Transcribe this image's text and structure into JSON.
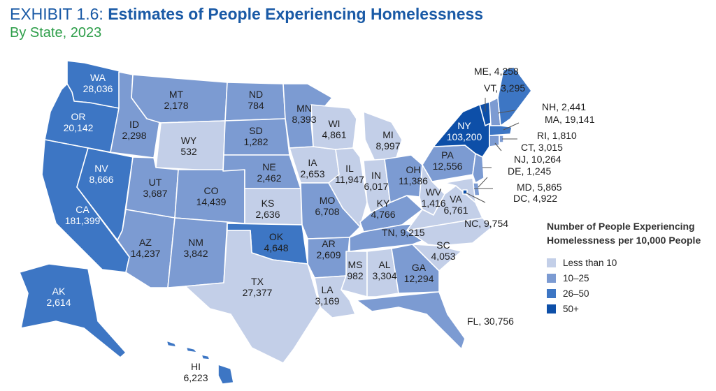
{
  "header": {
    "exhibit": "EXHIBIT 1.6:",
    "title": "Estimates of People Experiencing Homelessness",
    "subtitle": "By State, 2023"
  },
  "legend": {
    "title": "Number of People Experiencing Homelessness per 10,000 People",
    "items": [
      {
        "label": "Less than 10",
        "color": "#c3cfe8"
      },
      {
        "label": "10–25",
        "color": "#7c9bd2"
      },
      {
        "label": "26–50",
        "color": "#3d76c4"
      },
      {
        "label": "50+",
        "color": "#0d4fa8"
      }
    ]
  },
  "states": [
    {
      "abbr": "WA",
      "value": "28,036",
      "category": 2
    },
    {
      "abbr": "OR",
      "value": "20,142",
      "category": 2
    },
    {
      "abbr": "CA",
      "value": "181,399",
      "category": 2
    },
    {
      "abbr": "NV",
      "value": "8,666",
      "category": 2
    },
    {
      "abbr": "ID",
      "value": "2,298",
      "category": 1
    },
    {
      "abbr": "MT",
      "value": "2,178",
      "category": 1
    },
    {
      "abbr": "WY",
      "value": "532",
      "category": 0
    },
    {
      "abbr": "UT",
      "value": "3,687",
      "category": 1
    },
    {
      "abbr": "CO",
      "value": "14,439",
      "category": 1
    },
    {
      "abbr": "AZ",
      "value": "14,237",
      "category": 1
    },
    {
      "abbr": "NM",
      "value": "3,842",
      "category": 1
    },
    {
      "abbr": "ND",
      "value": "784",
      "category": 1
    },
    {
      "abbr": "SD",
      "value": "1,282",
      "category": 1
    },
    {
      "abbr": "NE",
      "value": "2,462",
      "category": 1
    },
    {
      "abbr": "KS",
      "value": "2,636",
      "category": 0
    },
    {
      "abbr": "OK",
      "value": "4,648",
      "category": 2
    },
    {
      "abbr": "TX",
      "value": "27,377",
      "category": 0
    },
    {
      "abbr": "MN",
      "value": "8,393",
      "category": 1
    },
    {
      "abbr": "IA",
      "value": "2,653",
      "category": 0
    },
    {
      "abbr": "MO",
      "value": "6,708",
      "category": 1
    },
    {
      "abbr": "AR",
      "value": "2,609",
      "category": 1
    },
    {
      "abbr": "LA",
      "value": "3,169",
      "category": 0
    },
    {
      "abbr": "WI",
      "value": "4,861",
      "category": 0
    },
    {
      "abbr": "IL",
      "value": "11,947",
      "category": 0
    },
    {
      "abbr": "MS",
      "value": "982",
      "category": 0
    },
    {
      "abbr": "MI",
      "value": "8,997",
      "category": 0
    },
    {
      "abbr": "IN",
      "value": "6,017",
      "category": 0
    },
    {
      "abbr": "KY",
      "value": "4,766",
      "category": 1
    },
    {
      "abbr": "TN",
      "value": "9,215",
      "category": 1
    },
    {
      "abbr": "AL",
      "value": "3,304",
      "category": 0
    },
    {
      "abbr": "GA",
      "value": "12,294",
      "category": 1
    },
    {
      "abbr": "FL",
      "value": "30,756",
      "category": 1
    },
    {
      "abbr": "OH",
      "value": "11,386",
      "category": 1
    },
    {
      "abbr": "WV",
      "value": "1,416",
      "category": 0
    },
    {
      "abbr": "VA",
      "value": "6,761",
      "category": 0
    },
    {
      "abbr": "NC",
      "value": "9,754",
      "category": 0
    },
    {
      "abbr": "SC",
      "value": "4,053",
      "category": 0
    },
    {
      "abbr": "PA",
      "value": "12,556",
      "category": 1
    },
    {
      "abbr": "NY",
      "value": "103,200",
      "category": 3
    },
    {
      "abbr": "NJ",
      "value": "10,264",
      "category": 1
    },
    {
      "abbr": "DE",
      "value": "1,245",
      "category": 1
    },
    {
      "abbr": "MD",
      "value": "5,865",
      "category": 0
    },
    {
      "abbr": "DC",
      "value": "4,922",
      "category": 3
    },
    {
      "abbr": "VT",
      "value": "3,295",
      "category": 3
    },
    {
      "abbr": "NH",
      "value": "2,441",
      "category": 1
    },
    {
      "abbr": "ME",
      "value": "4,258",
      "category": 2
    },
    {
      "abbr": "MA",
      "value": "19,141",
      "category": 2
    },
    {
      "abbr": "RI",
      "value": "1,810",
      "category": 1
    },
    {
      "abbr": "CT",
      "value": "3,015",
      "category": 1
    },
    {
      "abbr": "AK",
      "value": "2,614",
      "category": 2
    },
    {
      "abbr": "HI",
      "value": "6,223",
      "category": 2
    }
  ]
}
